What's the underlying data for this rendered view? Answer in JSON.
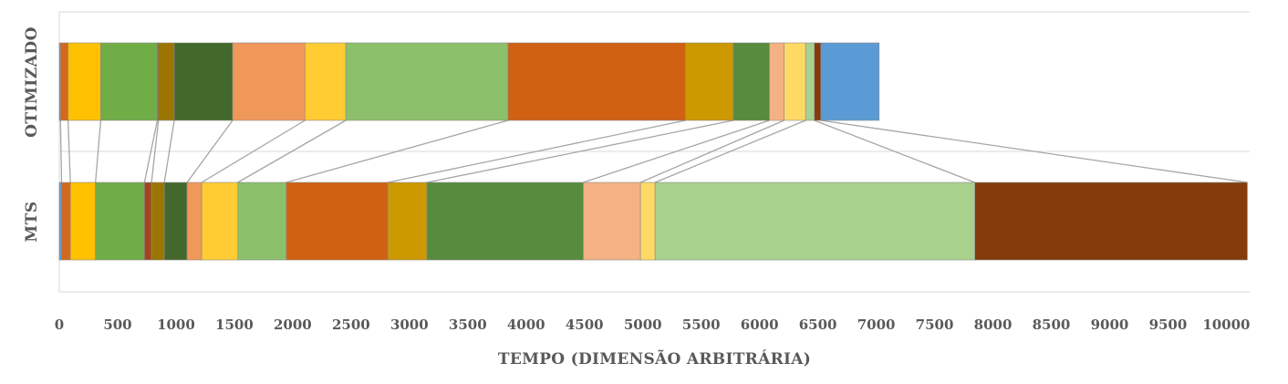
{
  "chart_data": {
    "type": "bar",
    "orientation": "horizontal",
    "stacked": true,
    "categories": [
      "OTIMIZADO",
      "MTS"
    ],
    "xlabel": "TEMPO (DIMENSÃO ARBITRÁRIA)",
    "ylabel": "",
    "xlim": [
      0,
      10200
    ],
    "x_ticks": [
      0,
      500,
      1000,
      1500,
      2000,
      2500,
      3000,
      3500,
      4000,
      4500,
      5000,
      5500,
      6000,
      6500,
      7000,
      7500,
      8000,
      8500,
      9000,
      9500,
      10000
    ],
    "grid": "horizontal",
    "legend": "none",
    "connector_lines": true,
    "segment_colors": [
      "#5B9BD5",
      "#D2691E",
      "#FFC000",
      "#70AD47",
      "#A0461A",
      "#9C7400",
      "#43682B",
      "#F0975A",
      "#FFCC33",
      "#8CC06A",
      "#D06012",
      "#CC9900",
      "#578B3E",
      "#F4B183",
      "#FFD966",
      "#A9D18E",
      "#843C0C"
    ],
    "series": [
      {
        "name": "",
        "boundaries": [
          0,
          10,
          75,
          355,
          840,
          850,
          985,
          1485,
          2105,
          2455,
          3845,
          5365,
          5775,
          6085,
          6210,
          6395,
          6470,
          6525,
          7025
        ]
      },
      {
        "name": "",
        "boundaries": [
          0,
          20,
          95,
          310,
          730,
          790,
          900,
          1095,
          1220,
          1530,
          1945,
          2815,
          3150,
          4490,
          4980,
          5105,
          7845,
          10180
        ]
      }
    ]
  }
}
